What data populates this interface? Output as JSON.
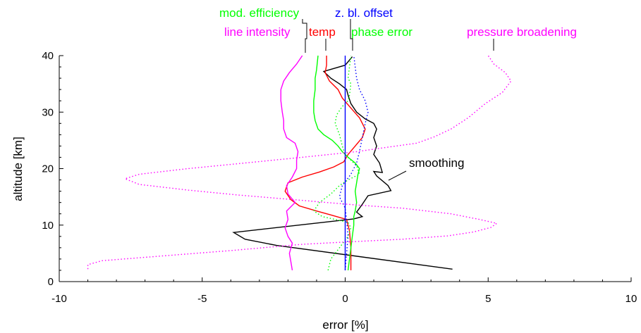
{
  "chart_data": {
    "type": "line",
    "title": "",
    "xlabel": "error [%]",
    "ylabel": "altitude [km]",
    "xlim": [
      -10,
      10
    ],
    "ylim": [
      0,
      40
    ],
    "xticks": [
      -10,
      -5,
      0,
      5,
      10
    ],
    "yticks": [
      0,
      10,
      20,
      30,
      40
    ],
    "grid": false,
    "legend_placement": "top, labels attached to curve ends by leader lines",
    "series": [
      {
        "name": "smoothing",
        "color": "#000000",
        "style": "solid",
        "points": [
          [
            3.75,
            2.2
          ],
          [
            -2.4,
            6.4
          ],
          [
            -3.5,
            7.5
          ],
          [
            -3.9,
            8.7
          ],
          [
            0.3,
            11.1
          ],
          [
            0.6,
            11.5
          ],
          [
            0.4,
            12.3
          ],
          [
            0.6,
            13.7
          ],
          [
            0.8,
            15.2
          ],
          [
            1.6,
            16.1
          ],
          [
            1.5,
            17.0
          ],
          [
            1.1,
            18.7
          ],
          [
            1.0,
            19.5
          ],
          [
            1.3,
            19.3
          ],
          [
            1.2,
            21.0
          ],
          [
            1.0,
            22.5
          ],
          [
            1.1,
            24.0
          ],
          [
            1.0,
            25.5
          ],
          [
            1.1,
            27.0
          ],
          [
            1.0,
            28.0
          ],
          [
            0.7,
            28.8
          ],
          [
            0.4,
            30.0
          ],
          [
            0.2,
            31.5
          ],
          [
            0.1,
            33.0
          ],
          [
            0.05,
            34.0
          ],
          [
            -0.2,
            35.0
          ],
          [
            -0.5,
            36.0
          ],
          [
            -0.75,
            37.2
          ],
          [
            0.0,
            38.3
          ],
          [
            0.25,
            39.8
          ]
        ]
      },
      {
        "name": "temp",
        "color": "#ff0000",
        "style": "solid",
        "points": [
          [
            0.2,
            2.0
          ],
          [
            0.2,
            6.0
          ],
          [
            0.15,
            9.0
          ],
          [
            0.05,
            11.0
          ],
          [
            -0.5,
            11.8
          ],
          [
            -1.0,
            12.5
          ],
          [
            -1.6,
            13.4
          ],
          [
            -1.9,
            14.5
          ],
          [
            -2.1,
            16.0
          ],
          [
            -2.0,
            17.5
          ],
          [
            -1.5,
            18.5
          ],
          [
            -0.9,
            19.4
          ],
          [
            -0.4,
            20.3
          ],
          [
            -0.05,
            21.2
          ],
          [
            0.1,
            22.5
          ],
          [
            0.35,
            24.0
          ],
          [
            0.6,
            25.5
          ],
          [
            0.7,
            27.0
          ],
          [
            0.5,
            29.0
          ],
          [
            0.15,
            31.0
          ],
          [
            -0.1,
            32.5
          ],
          [
            -0.25,
            34.0
          ],
          [
            -0.55,
            35.5
          ],
          [
            -0.7,
            37.0
          ],
          [
            -0.65,
            38.3
          ],
          [
            -0.65,
            40.0
          ]
        ]
      },
      {
        "name": "line intensity",
        "color": "#ff00ff",
        "style": "solid",
        "points": [
          [
            -1.85,
            2.0
          ],
          [
            -1.9,
            3.5
          ],
          [
            -1.95,
            5.0
          ],
          [
            -1.85,
            6.8
          ],
          [
            -2.0,
            8.0
          ],
          [
            -2.1,
            9.5
          ],
          [
            -2.0,
            11.0
          ],
          [
            -2.05,
            12.5
          ],
          [
            -1.75,
            14.0
          ],
          [
            -2.0,
            15.5
          ],
          [
            -2.05,
            17.0
          ],
          [
            -1.85,
            18.5
          ],
          [
            -1.7,
            20.0
          ],
          [
            -1.7,
            21.5
          ],
          [
            -1.65,
            23.0
          ],
          [
            -1.75,
            24.5
          ],
          [
            -2.05,
            25.5
          ],
          [
            -2.15,
            27.0
          ],
          [
            -2.15,
            28.5
          ],
          [
            -2.2,
            30.0
          ],
          [
            -2.25,
            32.0
          ],
          [
            -2.25,
            34.0
          ],
          [
            -2.15,
            35.5
          ],
          [
            -1.95,
            37.0
          ],
          [
            -1.7,
            38.5
          ],
          [
            -1.5,
            40.0
          ]
        ]
      },
      {
        "name": "mod. efficiency",
        "color": "#00ff00",
        "style": "solid",
        "points": [
          [
            0.1,
            2.0
          ],
          [
            0.15,
            4.0
          ],
          [
            0.2,
            6.0
          ],
          [
            0.25,
            8.0
          ],
          [
            0.3,
            10.0
          ],
          [
            0.3,
            11.5
          ],
          [
            0.35,
            12.5
          ],
          [
            0.4,
            14.0
          ],
          [
            0.35,
            16.0
          ],
          [
            0.4,
            17.5
          ],
          [
            0.45,
            19.0
          ],
          [
            0.5,
            20.0
          ],
          [
            0.35,
            21.0
          ],
          [
            0.1,
            22.0
          ],
          [
            -0.1,
            23.0
          ],
          [
            -0.25,
            24.0
          ],
          [
            -0.45,
            25.0
          ],
          [
            -0.75,
            26.0
          ],
          [
            -0.95,
            27.0
          ],
          [
            -1.05,
            28.5
          ],
          [
            -1.1,
            30.0
          ],
          [
            -1.1,
            32.0
          ],
          [
            -1.05,
            34.0
          ],
          [
            -1.05,
            36.0
          ],
          [
            -1.0,
            37.5
          ],
          [
            -0.95,
            40.0
          ]
        ]
      },
      {
        "name": "phase error",
        "color": "#00ff00",
        "style": "dotted",
        "points": [
          [
            -0.6,
            2.0
          ],
          [
            -0.5,
            4.0
          ],
          [
            -0.2,
            6.0
          ],
          [
            0.1,
            8.0
          ],
          [
            0.2,
            9.5
          ],
          [
            0.1,
            10.5
          ],
          [
            -0.8,
            11.5
          ],
          [
            -1.1,
            12.5
          ],
          [
            -0.9,
            14.0
          ],
          [
            -0.5,
            15.5
          ],
          [
            -0.2,
            17.0
          ],
          [
            0.1,
            18.0
          ],
          [
            0.5,
            19.0
          ],
          [
            0.4,
            20.5
          ],
          [
            0.2,
            21.5
          ],
          [
            0.0,
            22.5
          ],
          [
            -0.1,
            24.0
          ],
          [
            -0.2,
            26.0
          ],
          [
            -0.35,
            28.0
          ],
          [
            -0.3,
            29.5
          ],
          [
            -0.1,
            31.0
          ],
          [
            0.1,
            32.0
          ],
          [
            0.15,
            33.0
          ],
          [
            0.2,
            35.0
          ],
          [
            0.1,
            36.0
          ],
          [
            0.15,
            38.0
          ],
          [
            0.2,
            40.0
          ]
        ]
      },
      {
        "name": "z. bl. offset",
        "color": "#0000ff",
        "style": "solid",
        "points": [
          [
            0.0,
            2.0
          ],
          [
            0.0,
            10.0
          ],
          [
            0.0,
            20.0
          ],
          [
            0.0,
            30.0
          ],
          [
            0.0,
            40.0
          ]
        ]
      },
      {
        "name": "z. bl. offset",
        "color": "#0000ff",
        "style": "dotted",
        "points": [
          [
            0.0,
            2.0
          ],
          [
            0.05,
            5.0
          ],
          [
            0.1,
            8.0
          ],
          [
            0.05,
            11.0
          ],
          [
            0.0,
            13.0
          ],
          [
            -0.2,
            15.0
          ],
          [
            -0.1,
            17.0
          ],
          [
            0.2,
            19.0
          ],
          [
            0.4,
            21.0
          ],
          [
            0.5,
            23.0
          ],
          [
            0.6,
            25.5
          ],
          [
            0.7,
            28.0
          ],
          [
            0.8,
            30.0
          ],
          [
            0.7,
            32.0
          ],
          [
            0.5,
            34.0
          ],
          [
            0.4,
            36.0
          ],
          [
            0.35,
            38.0
          ],
          [
            0.3,
            40.0
          ]
        ]
      },
      {
        "name": "pressure broadening",
        "color": "#ff00ff",
        "style": "dotted",
        "points": [
          [
            -9.0,
            2.2
          ],
          [
            -9.0,
            3.0
          ],
          [
            -8.5,
            3.7
          ],
          [
            -6.5,
            4.5
          ],
          [
            -4.0,
            5.5
          ],
          [
            -1.5,
            6.6
          ],
          [
            0.0,
            7.0
          ],
          [
            2.0,
            7.5
          ],
          [
            3.6,
            8.1
          ],
          [
            4.5,
            8.8
          ],
          [
            5.1,
            9.6
          ],
          [
            5.3,
            10.3
          ],
          [
            4.7,
            11.0
          ],
          [
            3.7,
            12.0
          ],
          [
            2.0,
            13.0
          ],
          [
            0.3,
            13.6
          ],
          [
            -1.8,
            14.5
          ],
          [
            -3.7,
            15.3
          ],
          [
            -5.5,
            16.2
          ],
          [
            -7.2,
            17.2
          ],
          [
            -7.7,
            18.2
          ],
          [
            -7.2,
            19.0
          ],
          [
            -5.5,
            20.0
          ],
          [
            -3.5,
            21.0
          ],
          [
            -1.5,
            22.0
          ],
          [
            0.4,
            23.0
          ],
          [
            1.5,
            23.8
          ],
          [
            2.5,
            24.5
          ],
          [
            3.1,
            25.6
          ],
          [
            3.7,
            27.0
          ],
          [
            4.3,
            29.0
          ],
          [
            4.9,
            31.5
          ],
          [
            5.5,
            33.5
          ],
          [
            5.8,
            35.5
          ],
          [
            5.6,
            37.0
          ],
          [
            5.2,
            38.5
          ],
          [
            5.0,
            40.0
          ]
        ]
      }
    ],
    "annotations": [
      {
        "text": "smoothing",
        "color": "#000000"
      }
    ]
  },
  "legend": [
    {
      "text": "mod. efficiency",
      "color": "#00ff00"
    },
    {
      "text": "z. bl. offset",
      "color": "#0000ff"
    },
    {
      "text": "line intensity",
      "color": "#ff00ff"
    },
    {
      "text": "temp",
      "color": "#ff0000"
    },
    {
      "text": "phase error",
      "color": "#00ff00"
    },
    {
      "text": "pressure broadening",
      "color": "#ff00ff"
    }
  ]
}
